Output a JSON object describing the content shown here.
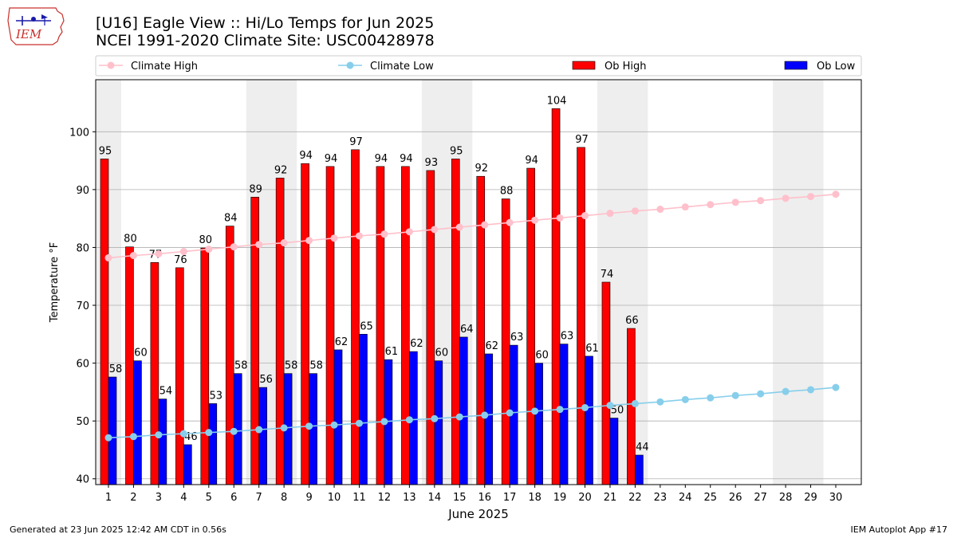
{
  "header": {
    "title_line1": "[U16] Eagle View :: Hi/Lo Temps for Jun 2025",
    "title_line2": "NCEI 1991-2020 Climate Site: USC00428978"
  },
  "logo": {
    "text": "IEM",
    "icon": "iem-iowa-logo"
  },
  "footer": {
    "left": "Generated at 23 Jun 2025 12:42 AM CDT in 0.56s",
    "right": "IEM Autoplot App #17"
  },
  "colors": {
    "ob_high": "#ff0000",
    "ob_low": "#0000ff",
    "climate_high": "#ffc0cb",
    "climate_low": "#87ceeb",
    "weekend_shade": "#eeeeee",
    "grid": "#b0b0b0"
  },
  "chart_data": {
    "type": "bar",
    "xlabel": "June 2025",
    "ylabel": "Temperature °F",
    "ylim": [
      39,
      109
    ],
    "yticks": [
      40,
      50,
      60,
      70,
      80,
      90,
      100
    ],
    "xticks": [
      1,
      2,
      3,
      4,
      5,
      6,
      7,
      8,
      9,
      10,
      11,
      12,
      13,
      14,
      15,
      16,
      17,
      18,
      19,
      20,
      21,
      22,
      23,
      24,
      25,
      26,
      27,
      28,
      29,
      30
    ],
    "grid": "horizontal",
    "legend_position": "top",
    "shaded_days": [
      1,
      7,
      8,
      14,
      15,
      21,
      22,
      28,
      29
    ],
    "series": [
      {
        "name": "Ob High",
        "kind": "bar",
        "values": [
          95,
          80,
          77,
          76,
          80,
          84,
          89,
          92,
          94,
          94,
          97,
          94,
          94,
          93,
          95,
          92,
          88,
          94,
          104,
          97,
          74,
          66
        ],
        "raw": [
          95.3,
          80.1,
          77.4,
          76.5,
          79.9,
          83.7,
          88.7,
          92.0,
          94.5,
          94.0,
          96.9,
          94.0,
          94.0,
          93.3,
          95.3,
          92.3,
          88.4,
          93.7,
          104.0,
          97.3,
          74.0,
          66.0
        ]
      },
      {
        "name": "Ob Low",
        "kind": "bar",
        "values": [
          58,
          60,
          54,
          46,
          53,
          58,
          56,
          58,
          58,
          62,
          65,
          61,
          62,
          60,
          64,
          62,
          63,
          60,
          63,
          61,
          50,
          44
        ],
        "raw": [
          57.6,
          60.4,
          53.8,
          45.9,
          53.0,
          58.2,
          55.8,
          58.2,
          58.2,
          62.3,
          65.0,
          60.6,
          62.0,
          60.4,
          64.5,
          61.6,
          63.1,
          60.0,
          63.3,
          61.2,
          50.5,
          44.1
        ]
      },
      {
        "name": "Climate High",
        "kind": "line",
        "values": [
          78.2,
          78.6,
          78.9,
          79.3,
          79.7,
          80.1,
          80.5,
          80.8,
          81.2,
          81.6,
          82.0,
          82.3,
          82.7,
          83.1,
          83.5,
          83.9,
          84.3,
          84.7,
          85.1,
          85.5,
          85.9,
          86.3,
          86.6,
          87.0,
          87.4,
          87.8,
          88.1,
          88.5,
          88.8,
          89.2
        ]
      },
      {
        "name": "Climate Low",
        "kind": "line",
        "values": [
          47.1,
          47.3,
          47.6,
          47.8,
          48.0,
          48.2,
          48.5,
          48.8,
          49.1,
          49.3,
          49.6,
          49.9,
          50.2,
          50.4,
          50.7,
          51.0,
          51.4,
          51.7,
          52.0,
          52.3,
          52.7,
          53.0,
          53.3,
          53.7,
          54.0,
          54.4,
          54.7,
          55.1,
          55.4,
          55.8
        ]
      }
    ]
  }
}
